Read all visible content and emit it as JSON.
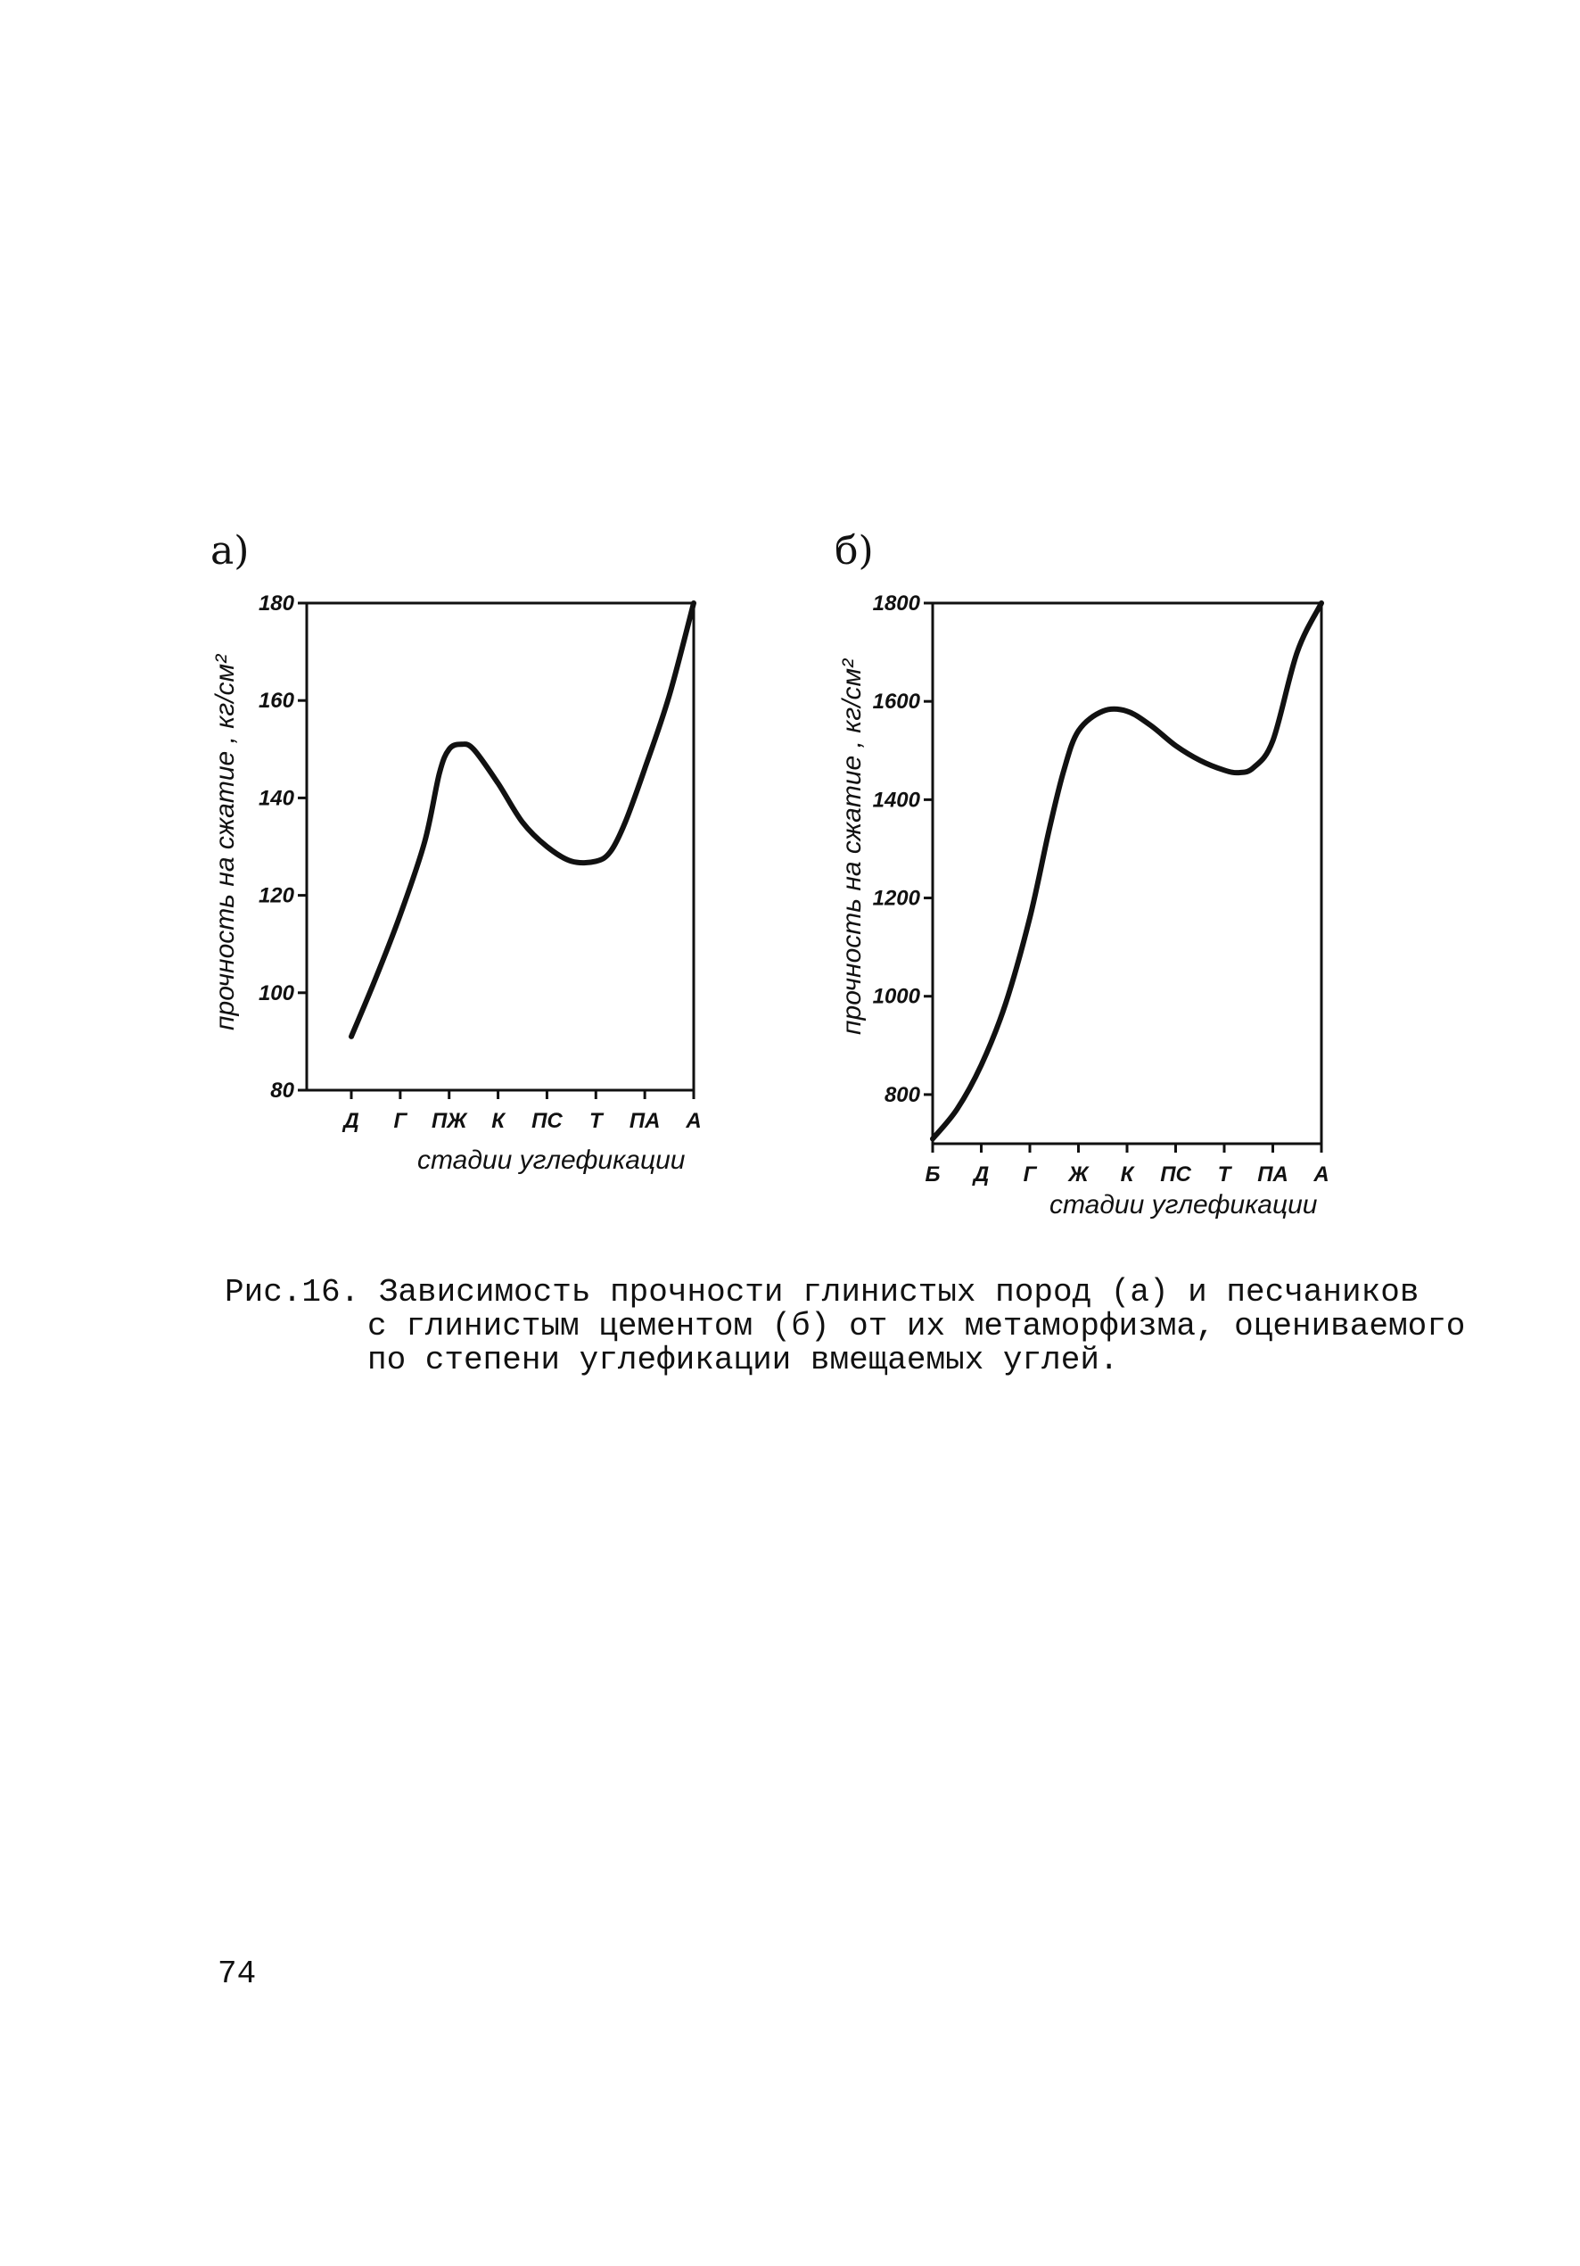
{
  "chart_data": [
    {
      "type": "line",
      "panel_label": "а)",
      "ylabel": "прочность на сжатие , кг/см²",
      "xlabel": "стадии углефикации",
      "categories": [
        "Д",
        "Г",
        "ПЖ",
        "К",
        "ПС",
        "Т",
        "ПА",
        "А"
      ],
      "yticks": [
        80,
        100,
        120,
        140,
        160,
        180
      ],
      "ylim": [
        80,
        180
      ],
      "grid": false,
      "series": [
        {
          "x": [
            0,
            0.5,
            1,
            1.5,
            1.8,
            2,
            2.25,
            2.5,
            3,
            3.5,
            4,
            4.5,
            5,
            5.3,
            5.6,
            6,
            6.5,
            7
          ],
          "values": [
            91,
            103,
            116,
            131,
            145,
            150,
            151,
            150,
            143,
            135,
            130,
            127,
            127,
            129,
            135,
            146,
            161,
            180
          ]
        }
      ]
    },
    {
      "type": "line",
      "panel_label": "б)",
      "ylabel": "прочность на сжатие , кг/см²",
      "xlabel": "стадии углефикации",
      "categories": [
        "Б",
        "Д",
        "Г",
        "Ж",
        "К",
        "ПС",
        "Т",
        "ПА",
        "А"
      ],
      "yticks": [
        800,
        1000,
        1200,
        1400,
        1600,
        1800
      ],
      "ylim": [
        700,
        1800
      ],
      "grid": false,
      "series": [
        {
          "x": [
            0,
            0.5,
            1,
            1.5,
            2,
            2.4,
            2.7,
            3,
            3.5,
            4,
            4.5,
            5,
            5.5,
            6,
            6.3,
            6.6,
            7,
            7.5,
            8
          ],
          "values": [
            710,
            770,
            860,
            985,
            1160,
            1340,
            1460,
            1540,
            1580,
            1580,
            1550,
            1510,
            1480,
            1460,
            1455,
            1465,
            1520,
            1700,
            1800
          ]
        }
      ]
    }
  ],
  "caption": {
    "line1": "Рис.16. Зависимость прочности глинистых пород (а) и песчаников",
    "line2": "с глинистым цементом (б) от их метаморфизма, оцениваемого",
    "line3": "по степени углефикации вмещаемых углей."
  },
  "page_number": "74"
}
